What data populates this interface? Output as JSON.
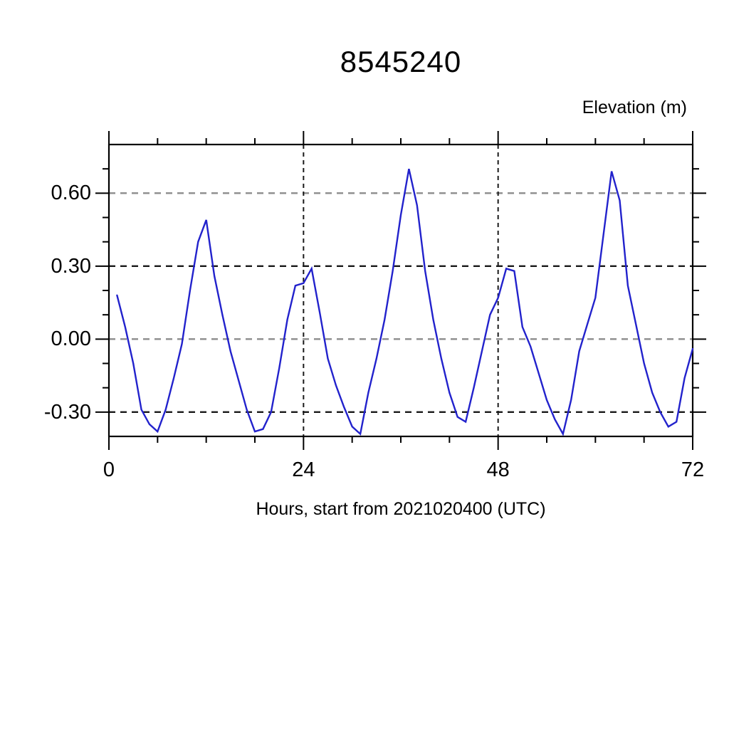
{
  "page": {
    "background": "#ffffff"
  },
  "chart_data": {
    "type": "line",
    "title": "8545240",
    "ylabel": "Elevation (m)",
    "xlabel": "Hours, start from 2021020400 (UTC)",
    "xlim": [
      0,
      72
    ],
    "ylim": [
      -0.4,
      0.8
    ],
    "x_major_ticks": [
      0,
      24,
      48,
      72
    ],
    "x_tick_labels": [
      "0",
      "24",
      "48",
      "72"
    ],
    "x_minor_interval": 6,
    "y_major_ticks": [
      0.6,
      0.3,
      0.0,
      -0.3
    ],
    "y_tick_labels": [
      "0.60",
      "0.30",
      "0.00",
      "-0.30"
    ],
    "y_minor_interval": 0.1,
    "grid": {
      "h_lines": [
        {
          "y": 0.6,
          "color": "#8c8c8c"
        },
        {
          "y": 0.3,
          "color": "#1a1a1a"
        },
        {
          "y": 0.0,
          "color": "#8c8c8c"
        },
        {
          "y": -0.3,
          "color": "#1a1a1a"
        }
      ],
      "v_lines": [
        {
          "x": 24,
          "color": "#1a1a1a"
        },
        {
          "x": 48,
          "color": "#1a1a1a"
        }
      ]
    },
    "axis_color": "#000000",
    "series": [
      {
        "name": "elevation",
        "color": "#2222cc",
        "x": [
          1,
          2,
          3,
          4,
          5,
          6,
          7,
          8,
          9,
          10,
          11,
          12,
          13,
          14,
          15,
          16,
          17,
          18,
          19,
          20,
          21,
          22,
          23,
          24,
          25,
          26,
          27,
          28,
          29,
          30,
          31,
          32,
          33,
          34,
          35,
          36,
          37,
          38,
          39,
          40,
          41,
          42,
          43,
          44,
          45,
          46,
          47,
          48,
          49,
          50,
          51,
          52,
          53,
          54,
          55,
          56,
          57,
          58,
          59,
          60,
          61,
          62,
          63,
          64,
          65,
          66,
          67,
          68,
          69,
          70,
          71,
          72
        ],
        "y": [
          0.18,
          0.05,
          -0.1,
          -0.29,
          -0.35,
          -0.38,
          -0.29,
          -0.16,
          -0.02,
          0.2,
          0.4,
          0.49,
          0.26,
          0.1,
          -0.05,
          -0.17,
          -0.29,
          -0.38,
          -0.37,
          -0.3,
          -0.12,
          0.08,
          0.22,
          0.23,
          0.29,
          0.11,
          -0.08,
          -0.19,
          -0.28,
          -0.36,
          -0.39,
          -0.22,
          -0.08,
          0.08,
          0.28,
          0.51,
          0.7,
          0.55,
          0.28,
          0.08,
          -0.08,
          -0.22,
          -0.32,
          -0.34,
          -0.2,
          -0.05,
          0.1,
          0.17,
          0.29,
          0.28,
          0.05,
          -0.03,
          -0.14,
          -0.25,
          -0.33,
          -0.39,
          -0.25,
          -0.05,
          0.06,
          0.17,
          0.43,
          0.69,
          0.57,
          0.22,
          0.06,
          -0.1,
          -0.22,
          -0.3,
          -0.36,
          -0.34,
          -0.16,
          -0.04
        ]
      }
    ]
  }
}
